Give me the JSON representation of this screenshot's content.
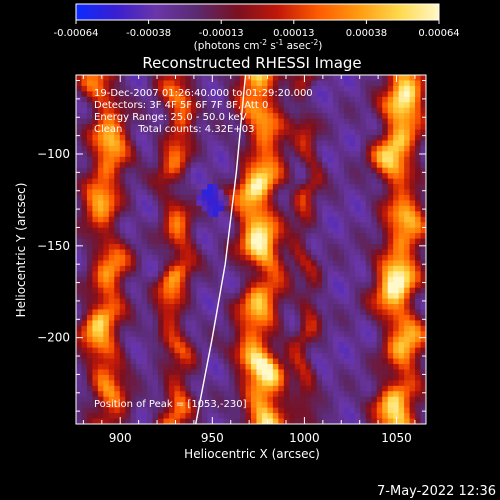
{
  "colorbar": {
    "ticks": [
      "-0.00064",
      "-0.00038",
      "-0.00013",
      "0.00013",
      "0.00038",
      "0.00064"
    ],
    "unit_label_parts": [
      "(photons cm",
      "-2",
      " s",
      "-1",
      " asec",
      "-2",
      ")"
    ],
    "colors": [
      "#0b2cff",
      "#3a1fd0",
      "#6a36a8",
      "#5a2a70",
      "#7a1020",
      "#c01808",
      "#ff5a00",
      "#ff9a10",
      "#ffd84a",
      "#fff8c8"
    ]
  },
  "chart_data": {
    "type": "heatmap",
    "title": "Reconstructed RHESSI Image",
    "xlabel": "Heliocentric X (arcsec)",
    "ylabel": "Heliocentric Y (arcsec)",
    "xlim": [
      876,
      1066
    ],
    "ylim": [
      -247,
      -57
    ],
    "xticks": [
      900,
      950,
      1000,
      1050
    ],
    "yticks": [
      -100,
      -150,
      -200
    ],
    "annotations": [
      "19-Dec-2007 01:26:40.000 to 01:29:20.000",
      "Detectors: 3F 4F 5F 6F 7F 8F, Att 0",
      "Energy Range: 25.0 - 50.0 keV",
      "Clean     Total counts: 4.32E+03"
    ],
    "peak_label": "Position of Peak = [1053,-230]",
    "peak": [
      1053,
      -230
    ],
    "bands": [
      {
        "x": 892,
        "width": 10,
        "amp": 0.78
      },
      {
        "x": 930,
        "width": 8,
        "amp": 0.62
      },
      {
        "x": 976,
        "width": 11,
        "amp": 0.98
      },
      {
        "x": 1001,
        "width": 6,
        "amp": 0.38
      },
      {
        "x": 1052,
        "width": 11,
        "amp": 0.96
      }
    ],
    "limb_curve": [
      [
        968,
        -57
      ],
      [
        963,
        -110
      ],
      [
        957,
        -160
      ],
      [
        950,
        -200
      ],
      [
        941,
        -247
      ]
    ]
  },
  "footer": {
    "timestamp": "7-May-2022 12:36"
  }
}
